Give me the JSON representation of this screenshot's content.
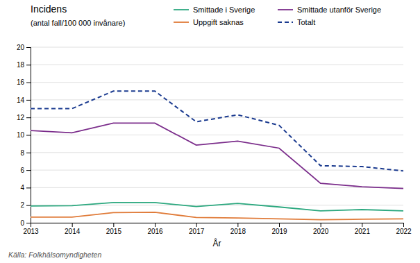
{
  "chart_data": {
    "type": "line",
    "title": "Incidens",
    "subtitle": "(antal fall/100 000 invånare)",
    "x_label": "År",
    "x": [
      2013,
      2014,
      2015,
      2016,
      2017,
      2018,
      2019,
      2020,
      2021,
      2022
    ],
    "series": [
      {
        "name": "Smittade i Sverige",
        "color": "#2ca87f",
        "line_style": "solid",
        "values": [
          1.9,
          1.95,
          2.3,
          2.3,
          1.85,
          2.2,
          1.8,
          1.35,
          1.5,
          1.35
        ]
      },
      {
        "name": "Smittade utanför Sverige",
        "color": "#7b2d8b",
        "line_style": "solid",
        "values": [
          10.5,
          10.25,
          11.35,
          11.35,
          8.85,
          9.3,
          8.5,
          4.5,
          4.1,
          3.9
        ]
      },
      {
        "name": "Uppgift saknas",
        "color": "#e07b39",
        "line_style": "solid",
        "values": [
          0.65,
          0.65,
          1.15,
          1.2,
          0.6,
          0.55,
          0.45,
          0.35,
          0.4,
          0.45
        ]
      },
      {
        "name": "Totalt",
        "color": "#1a3a8f",
        "line_style": "dashed",
        "values": [
          13.0,
          13.0,
          15.0,
          15.0,
          11.5,
          12.3,
          11.1,
          6.5,
          6.4,
          5.9
        ]
      }
    ],
    "xlim": [
      2013,
      2022
    ],
    "xticks": [
      2013,
      2014,
      2015,
      2016,
      2017,
      2018,
      2019,
      2020,
      2021,
      2022
    ],
    "ylim": [
      0,
      20
    ],
    "yticks": [
      0,
      2,
      4,
      6,
      8,
      10,
      12,
      14,
      16,
      18,
      20
    ],
    "grid": true,
    "legend": "top",
    "annotations": [
      "Källa: Folkhälsomyndigheten"
    ]
  }
}
